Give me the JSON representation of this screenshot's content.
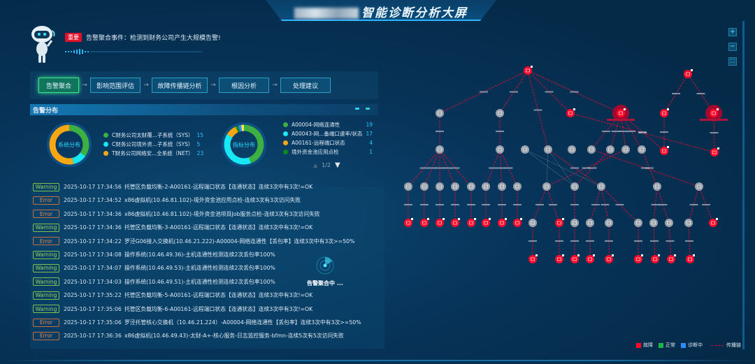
{
  "header": {
    "title": "智能诊断分析大屏"
  },
  "alert": {
    "tag": "重要",
    "message": "告警聚合事件：检测到财务公司产生大规模告警!"
  },
  "flow": {
    "steps": [
      {
        "label": "告警聚合",
        "active": true
      },
      {
        "label": "影响范围评估"
      },
      {
        "label": "故障传播链分析"
      },
      {
        "label": "根因分析"
      },
      {
        "label": "处理建议"
      }
    ]
  },
  "distribution": {
    "title": "告警分布",
    "system": {
      "center": "系统分布",
      "items": [
        {
          "label": "C财务公司太财覆...子系统（SYS）",
          "value": 15,
          "color": "#3cb043"
        },
        {
          "label": "C财务公司境外资...子系统（SYS）",
          "value": 5,
          "color": "#16e8f5"
        },
        {
          "label": "T财务公司网络安...全系统（NET）",
          "value": 23,
          "color": "#f7a713"
        }
      ]
    },
    "metric": {
      "center": "指标分布",
      "page": "1/2",
      "items": [
        {
          "label": "A00004-网络连通性",
          "value": 19,
          "color": "#3cb043"
        },
        {
          "label": "A00043-网...备端口速率/状态",
          "value": 17,
          "color": "#16e8f5"
        },
        {
          "label": "A00161-远程端口状态",
          "value": 4,
          "color": "#f7a713"
        },
        {
          "label": "境外资金池应用点检",
          "value": 1,
          "color": "#0b8a1f"
        }
      ],
      "extra_colors": [
        "#2a8cff",
        "#ffe14d"
      ]
    }
  },
  "logs": [
    {
      "level": "Warning",
      "time": "2025-10-17 17:34:56",
      "msg": "托管区负载均衡-2-A00161-远程端口状态【连通状态】连续3次中有3次!=OK"
    },
    {
      "level": "Error",
      "time": "2025-10-17 17:34:52",
      "msg": "x86虚拟机(10.46.81.102)-境外资金池应用点检-连续3次有3次访问失败"
    },
    {
      "level": "Error",
      "time": "2025-10-17 17:34:36",
      "msg": "x86虚拟机(10.46.81.102)-境外资金池项目Job服务点检-连续3次有3次访问失败"
    },
    {
      "level": "Warning",
      "time": "2025-10-17 17:34:36",
      "msg": "托管区负载均衡-3-A00161-远程端口状态【连通状态】连续3次中有3次!=OK"
    },
    {
      "level": "Error",
      "time": "2025-10-17 17:34:22",
      "msg": "罗泾G06接入交换机(10.46.21.222)-A00004-网络连通性【丢包率】连续3次中有3次>=50%"
    },
    {
      "level": "Warning",
      "time": "2025-10-17 17:34:08",
      "msg": "操作系统(10.46.49.36)-主机连通性检测连续2次丢包率100%"
    },
    {
      "level": "Warning",
      "time": "2025-10-17 17:34:07",
      "msg": "操作系统(10.46.49.53)-主机连通性检测连续2次丢包率100%"
    },
    {
      "level": "Warning",
      "time": "2025-10-17 17:34:03",
      "msg": "操作系统(10.46.49.51)-主机连通性检测连续2次丢包率100%"
    },
    {
      "level": "Warning",
      "time": "2025-10-17 17:35:22",
      "msg": "托管区负载均衡-5-A00161-远程端口状态【连通状态】连续3次中有3次!=OK"
    },
    {
      "level": "Warning",
      "time": "2025-10-17 17:35:06",
      "msg": "托管区负载均衡-6-A00161-远程端口状态【连通状态】连续3次中有3次!=OK"
    },
    {
      "level": "Error",
      "time": "2025-10-17 17:35:06",
      "msg": "罗泾托管核心交换机（10.46.21.224）-A00004-网络连通性【丢包率】连续3次中有3次>=50%"
    },
    {
      "level": "Error",
      "time": "2025-10-17 17:36:36",
      "msg": "x86虚拟机(10.46.49.43)-太财-A+-核心服务-日志监控服务-bfmn-连续5次有5次访问失败"
    }
  ],
  "overlay": {
    "text": "告警聚合中 ..."
  },
  "graph": {
    "controls": [
      "zoom-in",
      "zoom-out",
      "fit"
    ],
    "legend": {
      "fault": "故障",
      "normal": "正常",
      "diagnosing": "诊断中",
      "chain": "传播链"
    },
    "colors": {
      "fault": "#ff0a2a",
      "normal": "#16b84a",
      "diagnosing": "#2a8cff",
      "chain": "#c8103a",
      "idle": "#9aa3ab"
    }
  }
}
